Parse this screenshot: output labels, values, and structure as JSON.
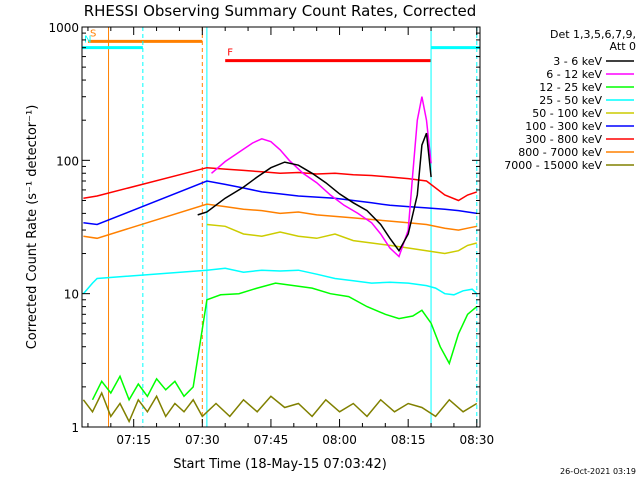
{
  "chart_data": {
    "type": "line",
    "title": "RHESSI Observing Summary Count Rates, Corrected",
    "xlabel": "Start Time (18-May-15 07:03:42)",
    "ylabel": "Corrected Count Rate (s⁻¹ detector⁻¹)",
    "yscale": "log",
    "ylim": [
      1,
      1000
    ],
    "xlim_minutes_after_0700": [
      3.7,
      90.7
    ],
    "y_ticks": [
      1,
      10,
      100,
      1000
    ],
    "x_ticks": [
      {
        "min": 15,
        "label": "07:15"
      },
      {
        "min": 30,
        "label": "07:30"
      },
      {
        "min": 45,
        "label": "07:45"
      },
      {
        "min": 60,
        "label": "08:00"
      },
      {
        "min": 75,
        "label": "08:15"
      },
      {
        "min": 90,
        "label": "08:30"
      }
    ],
    "legend_header": [
      "Det 1,3,5,6,7,9,",
      "Att 0"
    ],
    "legend_placement": "right",
    "timestamp": "26-Oct-2021 03:19",
    "series": [
      {
        "name": "3 - 6 keV",
        "color": "#000000",
        "points": [
          [
            29,
            39
          ],
          [
            31,
            41
          ],
          [
            35,
            52
          ],
          [
            39,
            63
          ],
          [
            42,
            75
          ],
          [
            45,
            88
          ],
          [
            48,
            97
          ],
          [
            51,
            92
          ],
          [
            54,
            80
          ],
          [
            57,
            68
          ],
          [
            60,
            56
          ],
          [
            63,
            48
          ],
          [
            66,
            42
          ],
          [
            69,
            33
          ],
          [
            71,
            26
          ],
          [
            73,
            21
          ],
          [
            75,
            28
          ],
          [
            77,
            55
          ],
          [
            78,
            130
          ],
          [
            79,
            160
          ],
          [
            80,
            75
          ]
        ]
      },
      {
        "name": "6 - 12 keV",
        "color": "#ff00ff",
        "points": [
          [
            32,
            80
          ],
          [
            35,
            98
          ],
          [
            38,
            115
          ],
          [
            41,
            135
          ],
          [
            43,
            145
          ],
          [
            45,
            138
          ],
          [
            47,
            120
          ],
          [
            49,
            100
          ],
          [
            52,
            80
          ],
          [
            55,
            68
          ],
          [
            58,
            55
          ],
          [
            61,
            46
          ],
          [
            64,
            40
          ],
          [
            67,
            34
          ],
          [
            69,
            28
          ],
          [
            71,
            22
          ],
          [
            73,
            19
          ],
          [
            75,
            30
          ],
          [
            76,
            80
          ],
          [
            77,
            200
          ],
          [
            78,
            300
          ],
          [
            79,
            200
          ],
          [
            80,
            95
          ]
        ]
      },
      {
        "name": "12 - 25 keV",
        "color": "#00ff00",
        "points": [
          [
            6,
            1.6
          ],
          [
            8,
            2.2
          ],
          [
            10,
            1.8
          ],
          [
            12,
            2.4
          ],
          [
            14,
            1.6
          ],
          [
            16,
            2.1
          ],
          [
            18,
            1.7
          ],
          [
            20,
            2.3
          ],
          [
            22,
            1.9
          ],
          [
            24,
            2.2
          ],
          [
            26,
            1.7
          ],
          [
            28,
            2.0
          ],
          [
            31,
            9
          ],
          [
            34,
            9.8
          ],
          [
            38,
            10
          ],
          [
            42,
            11
          ],
          [
            46,
            12
          ],
          [
            50,
            11.5
          ],
          [
            54,
            11
          ],
          [
            58,
            10
          ],
          [
            62,
            9.5
          ],
          [
            66,
            8
          ],
          [
            70,
            7
          ],
          [
            73,
            6.5
          ],
          [
            76,
            6.8
          ],
          [
            78,
            7.5
          ],
          [
            80,
            6
          ],
          [
            82,
            4
          ],
          [
            84,
            3
          ],
          [
            86,
            5
          ],
          [
            88,
            7
          ],
          [
            90,
            8
          ]
        ]
      },
      {
        "name": "25 - 50 keV",
        "color": "#00ffff",
        "points": [
          [
            4,
            10
          ],
          [
            6,
            12
          ],
          [
            7,
            13
          ],
          [
            31,
            15
          ],
          [
            35,
            15.5
          ],
          [
            39,
            14.5
          ],
          [
            43,
            15
          ],
          [
            47,
            14.8
          ],
          [
            51,
            15
          ],
          [
            55,
            14
          ],
          [
            59,
            13
          ],
          [
            63,
            12.5
          ],
          [
            67,
            12
          ],
          [
            71,
            12.2
          ],
          [
            75,
            12
          ],
          [
            79,
            11.5
          ],
          [
            81,
            11
          ],
          [
            83,
            10
          ],
          [
            85,
            9.8
          ],
          [
            87,
            10.5
          ],
          [
            89,
            10.8
          ],
          [
            90,
            10
          ]
        ]
      },
      {
        "name": "50 - 100 keV",
        "color": "#cccc00",
        "points": [
          [
            31,
            33
          ],
          [
            35,
            32
          ],
          [
            39,
            28
          ],
          [
            43,
            27
          ],
          [
            47,
            29
          ],
          [
            51,
            27
          ],
          [
            55,
            26
          ],
          [
            59,
            28
          ],
          [
            63,
            25
          ],
          [
            67,
            24
          ],
          [
            71,
            23
          ],
          [
            75,
            22
          ],
          [
            79,
            21
          ],
          [
            83,
            20
          ],
          [
            86,
            21
          ],
          [
            88,
            23
          ],
          [
            90,
            24
          ]
        ]
      },
      {
        "name": "100 - 300 keV",
        "color": "#0000ff",
        "points": [
          [
            4,
            34
          ],
          [
            7,
            33
          ],
          [
            31,
            70
          ],
          [
            35,
            66
          ],
          [
            39,
            62
          ],
          [
            43,
            58
          ],
          [
            47,
            56
          ],
          [
            51,
            54
          ],
          [
            55,
            53
          ],
          [
            59,
            52
          ],
          [
            63,
            50
          ],
          [
            67,
            48
          ],
          [
            71,
            46
          ],
          [
            75,
            45
          ],
          [
            79,
            44
          ],
          [
            83,
            43
          ],
          [
            86,
            42
          ],
          [
            88,
            41
          ],
          [
            90,
            40
          ]
        ]
      },
      {
        "name": "300 - 800 keV",
        "color": "#ff0000",
        "points": [
          [
            4,
            52
          ],
          [
            7,
            54
          ],
          [
            31,
            88
          ],
          [
            35,
            86
          ],
          [
            39,
            84
          ],
          [
            43,
            82
          ],
          [
            47,
            80
          ],
          [
            51,
            81
          ],
          [
            55,
            79
          ],
          [
            59,
            80
          ],
          [
            63,
            78
          ],
          [
            67,
            77
          ],
          [
            71,
            75
          ],
          [
            75,
            73
          ],
          [
            79,
            70
          ],
          [
            83,
            55
          ],
          [
            86,
            50
          ],
          [
            88,
            55
          ],
          [
            90,
            58
          ]
        ]
      },
      {
        "name": "800 - 7000 keV",
        "color": "#ff8000",
        "points": [
          [
            4,
            27
          ],
          [
            7,
            26
          ],
          [
            31,
            47
          ],
          [
            35,
            45
          ],
          [
            39,
            43
          ],
          [
            43,
            42
          ],
          [
            47,
            40
          ],
          [
            51,
            41
          ],
          [
            55,
            39
          ],
          [
            59,
            38
          ],
          [
            63,
            37
          ],
          [
            67,
            36
          ],
          [
            71,
            35
          ],
          [
            75,
            34
          ],
          [
            79,
            33
          ],
          [
            83,
            31
          ],
          [
            86,
            30
          ],
          [
            88,
            31
          ],
          [
            90,
            32
          ]
        ]
      },
      {
        "name": "7000 - 15000 keV",
        "color": "#808000",
        "points": [
          [
            4,
            1.6
          ],
          [
            6,
            1.3
          ],
          [
            8,
            1.8
          ],
          [
            10,
            1.2
          ],
          [
            12,
            1.5
          ],
          [
            14,
            1.1
          ],
          [
            16,
            1.6
          ],
          [
            18,
            1.3
          ],
          [
            20,
            1.7
          ],
          [
            22,
            1.2
          ],
          [
            24,
            1.5
          ],
          [
            26,
            1.3
          ],
          [
            28,
            1.6
          ],
          [
            30,
            1.2
          ],
          [
            33,
            1.5
          ],
          [
            36,
            1.2
          ],
          [
            39,
            1.6
          ],
          [
            42,
            1.3
          ],
          [
            45,
            1.7
          ],
          [
            48,
            1.4
          ],
          [
            51,
            1.5
          ],
          [
            54,
            1.2
          ],
          [
            57,
            1.6
          ],
          [
            60,
            1.3
          ],
          [
            63,
            1.5
          ],
          [
            66,
            1.2
          ],
          [
            69,
            1.6
          ],
          [
            72,
            1.3
          ],
          [
            75,
            1.5
          ],
          [
            78,
            1.4
          ],
          [
            81,
            1.2
          ],
          [
            84,
            1.6
          ],
          [
            87,
            1.3
          ],
          [
            90,
            1.5
          ]
        ]
      }
    ],
    "annotations": [
      {
        "label": "S",
        "color": "#ff8000",
        "x_start": 5,
        "x_end": 30,
        "y": 780,
        "lines": [
          {
            "x": 9.5,
            "style": "solid"
          },
          {
            "x": 30,
            "style": "dashed"
          }
        ]
      },
      {
        "label": "N",
        "color": "#00ffff",
        "x_start": 3.7,
        "x_end": 17,
        "y": 700,
        "lines": [
          {
            "x": 17,
            "style": "dashed"
          },
          {
            "x": 31,
            "style": "solid"
          }
        ]
      },
      {
        "label": "F",
        "color": "#ff0000",
        "x_start": 35,
        "x_end": 80,
        "y": 560,
        "lines": []
      },
      {
        "label": "",
        "color": "#00ffff",
        "x_start": 80,
        "x_end": 90.7,
        "y": 700,
        "lines": [
          {
            "x": 80,
            "style": "solid"
          },
          {
            "x": 90,
            "style": "dashed"
          }
        ]
      }
    ]
  }
}
